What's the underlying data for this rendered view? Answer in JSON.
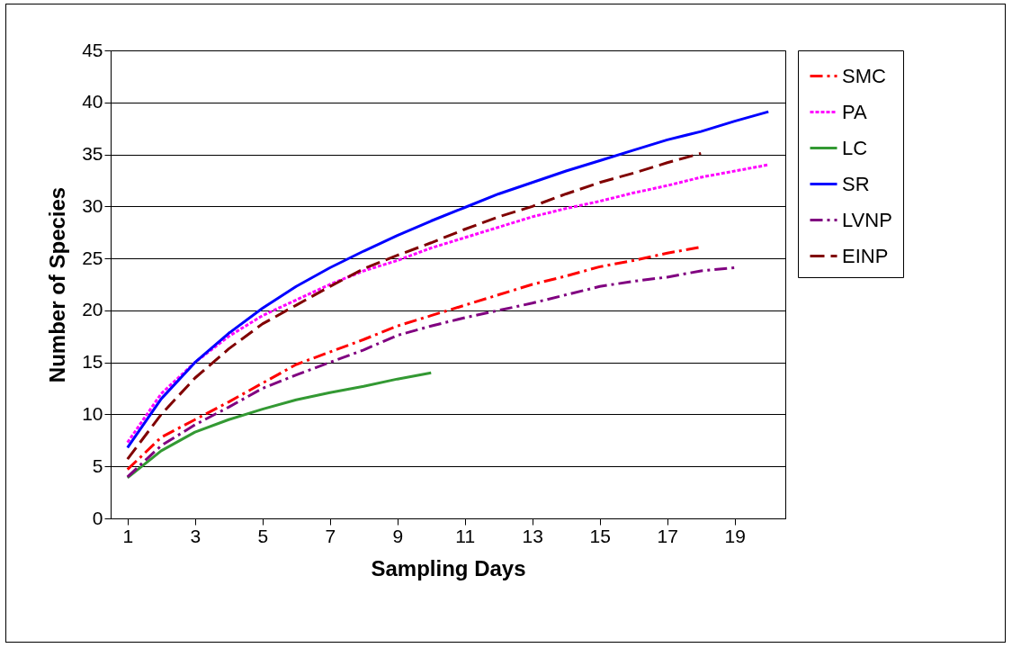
{
  "chart_data": {
    "type": "line",
    "xlabel": "Sampling Days",
    "ylabel": "Number of Species",
    "x": [
      1,
      2,
      3,
      4,
      5,
      6,
      7,
      8,
      9,
      10,
      11,
      12,
      13,
      14,
      15,
      16,
      17,
      18,
      19,
      20
    ],
    "xlim": [
      0.5,
      20.5
    ],
    "xticks": [
      1,
      3,
      5,
      7,
      9,
      11,
      13,
      15,
      17,
      19
    ],
    "ylim": [
      0,
      45
    ],
    "yticks": [
      0,
      5,
      10,
      15,
      20,
      25,
      30,
      35,
      40,
      45
    ],
    "grid": "y",
    "legend": "right",
    "marker": "none",
    "series": [
      {
        "name": "SMC",
        "color": "#ff0000",
        "line_style": "dashdot",
        "values": [
          4.7,
          7.8,
          9.5,
          11.2,
          13,
          14.8,
          16,
          17.2,
          18.5,
          19.5,
          20.5,
          21.5,
          22.5,
          23.3,
          24.2,
          24.8,
          25.5,
          26.1,
          null,
          null
        ]
      },
      {
        "name": "PA",
        "color": "#ff00ff",
        "line_style": "dotted",
        "values": [
          7.3,
          12,
          15,
          17.5,
          19.5,
          21,
          22.5,
          23.8,
          24.8,
          26,
          27,
          28,
          29,
          29.8,
          30.5,
          31.3,
          32,
          32.8,
          33.4,
          34
        ]
      },
      {
        "name": "LC",
        "color": "#339933",
        "line_style": "solid",
        "values": [
          3.9,
          6.5,
          8.3,
          9.5,
          10.5,
          11.4,
          12.1,
          12.7,
          13.4,
          14,
          null,
          null,
          null,
          null,
          null,
          null,
          null,
          null,
          null,
          null
        ]
      },
      {
        "name": "SR",
        "color": "#0000ff",
        "line_style": "solid",
        "values": [
          6.8,
          11.5,
          15,
          17.8,
          20.2,
          22.3,
          24.1,
          25.7,
          27.2,
          28.6,
          29.9,
          31.2,
          32.3,
          33.4,
          34.4,
          35.4,
          36.4,
          37.2,
          38.2,
          39.1
        ]
      },
      {
        "name": "LVNP",
        "color": "#800080",
        "line_style": "dashdot",
        "values": [
          4,
          7,
          9,
          10.7,
          12.5,
          13.8,
          15,
          16.2,
          17.6,
          18.5,
          19.3,
          20,
          20.7,
          21.5,
          22.3,
          22.8,
          23.2,
          23.8,
          24.1,
          null
        ]
      },
      {
        "name": "EINP",
        "color": "#800000",
        "line_style": "dashed",
        "values": [
          5.7,
          10,
          13.5,
          16.3,
          18.7,
          20.5,
          22.3,
          24,
          25.3,
          26.5,
          27.8,
          29,
          30,
          31.2,
          32.3,
          33.2,
          34.2,
          35.1,
          null,
          null
        ]
      }
    ]
  }
}
